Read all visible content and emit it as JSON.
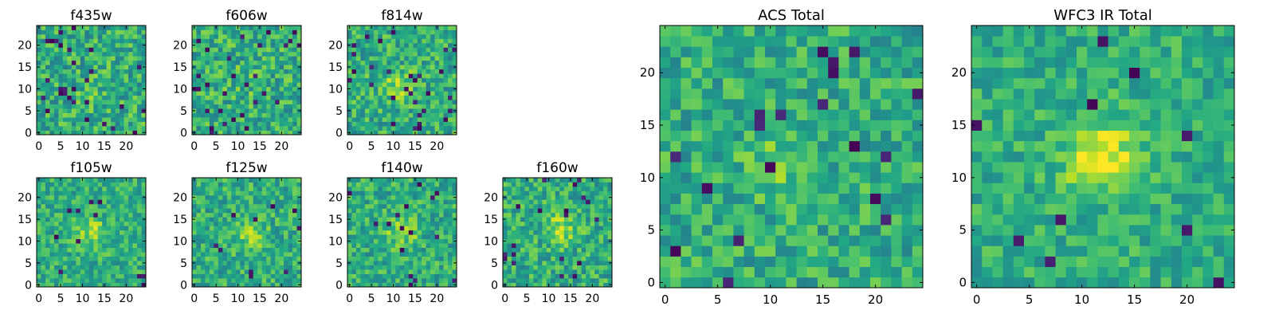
{
  "figure": {
    "colormap": "viridis",
    "colors": {
      "low": "#440154",
      "mid": "#21918c",
      "high": "#fde725",
      "frame": "#000000"
    }
  },
  "chart_data": [
    {
      "type": "heatmap",
      "title": "f435w",
      "size": [
        25,
        25
      ],
      "xticks": [
        0,
        5,
        10,
        15,
        20
      ],
      "yticks": [
        0,
        5,
        10,
        15,
        20
      ],
      "xlim": [
        -0.5,
        24.5
      ],
      "ylim": [
        -0.5,
        24.5
      ],
      "peak": [
        11,
        8
      ],
      "peak_strength": 0.08,
      "noise": 0.42,
      "holes": 0.04,
      "seed": 11,
      "grid": false
    },
    {
      "type": "heatmap",
      "title": "f606w",
      "size": [
        25,
        25
      ],
      "xticks": [
        0,
        5,
        10,
        15,
        20
      ],
      "yticks": [
        0,
        5,
        10,
        15,
        20
      ],
      "xlim": [
        -0.5,
        24.5
      ],
      "ylim": [
        -0.5,
        24.5
      ],
      "peak": [
        12,
        12
      ],
      "peak_strength": 0.08,
      "noise": 0.42,
      "holes": 0.04,
      "seed": 23,
      "grid": false
    },
    {
      "type": "heatmap",
      "title": "f814w",
      "size": [
        25,
        25
      ],
      "xticks": [
        0,
        5,
        10,
        15,
        20
      ],
      "yticks": [
        0,
        5,
        10,
        15,
        20
      ],
      "xlim": [
        -0.5,
        24.5
      ],
      "ylim": [
        -0.5,
        24.5
      ],
      "peak": [
        11,
        11
      ],
      "peak_strength": 0.22,
      "noise": 0.4,
      "holes": 0.04,
      "seed": 37,
      "grid": false
    },
    {
      "type": "heatmap",
      "title": "f105w",
      "size": [
        25,
        25
      ],
      "xticks": [
        0,
        5,
        10,
        15,
        20
      ],
      "yticks": [
        0,
        5,
        10,
        15,
        20
      ],
      "xlim": [
        -0.5,
        24.5
      ],
      "ylim": [
        -0.5,
        24.5
      ],
      "peak": [
        12,
        12
      ],
      "peak_strength": 0.22,
      "noise": 0.34,
      "holes": 0.02,
      "seed": 41,
      "grid": false
    },
    {
      "type": "heatmap",
      "title": "f125w",
      "size": [
        25,
        25
      ],
      "xticks": [
        0,
        5,
        10,
        15,
        20
      ],
      "yticks": [
        0,
        5,
        10,
        15,
        20
      ],
      "xlim": [
        -0.5,
        24.5
      ],
      "ylim": [
        -0.5,
        24.5
      ],
      "peak": [
        13,
        11
      ],
      "peak_strength": 0.2,
      "noise": 0.36,
      "holes": 0.02,
      "seed": 53,
      "grid": false
    },
    {
      "type": "heatmap",
      "title": "f140w",
      "size": [
        25,
        25
      ],
      "xticks": [
        0,
        5,
        10,
        15,
        20
      ],
      "yticks": [
        0,
        5,
        10,
        15,
        20
      ],
      "xlim": [
        -0.5,
        24.5
      ],
      "ylim": [
        -0.5,
        24.5
      ],
      "peak": [
        12,
        12
      ],
      "peak_strength": 0.22,
      "noise": 0.36,
      "holes": 0.03,
      "seed": 67,
      "grid": false
    },
    {
      "type": "heatmap",
      "title": "f160w",
      "size": [
        25,
        25
      ],
      "xticks": [
        0,
        5,
        10,
        15,
        20
      ],
      "yticks": [
        0,
        5,
        10,
        15,
        20
      ],
      "xlim": [
        -0.5,
        24.5
      ],
      "ylim": [
        -0.5,
        24.5
      ],
      "peak": [
        13,
        13
      ],
      "peak_strength": 0.24,
      "noise": 0.38,
      "holes": 0.03,
      "seed": 79,
      "grid": false
    },
    {
      "type": "heatmap",
      "title": "ACS Total",
      "size": [
        25,
        25
      ],
      "xticks": [
        0,
        5,
        10,
        15,
        20
      ],
      "yticks": [
        0,
        5,
        10,
        15,
        20
      ],
      "xlim": [
        -0.5,
        24.5
      ],
      "ylim": [
        -0.5,
        24.5
      ],
      "peak": [
        11,
        11
      ],
      "peak_strength": 0.14,
      "noise": 0.36,
      "holes": 0.03,
      "seed": 97,
      "grid": false
    },
    {
      "type": "heatmap",
      "title": "WFC3 IR Total",
      "size": [
        25,
        25
      ],
      "xticks": [
        0,
        5,
        10,
        15,
        20
      ],
      "yticks": [
        0,
        5,
        10,
        15,
        20
      ],
      "xlim": [
        -0.5,
        24.5
      ],
      "ylim": [
        -0.5,
        24.5
      ],
      "peak": [
        12,
        12
      ],
      "peak_strength": 0.38,
      "noise": 0.3,
      "holes": 0.02,
      "seed": 131,
      "grid": false
    }
  ]
}
